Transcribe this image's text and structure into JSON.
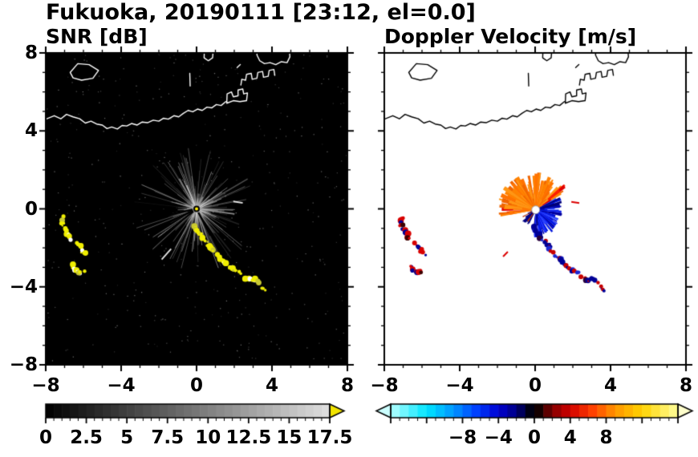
{
  "header": {
    "title": "Fukuoka, 20190111 [23:12, el=0.0]"
  },
  "chart_data": [
    {
      "type": "heatmap",
      "panel": "snr",
      "title": "SNR [dB]",
      "xlabel": "",
      "ylabel": "",
      "xlim": [
        -8,
        8
      ],
      "ylim": [
        -8,
        8
      ],
      "grid": false,
      "xtick_values": [
        -8,
        -4,
        0,
        4,
        8
      ],
      "xtick_labels": [
        "−8",
        "−4",
        "0",
        "4",
        "8"
      ],
      "ytick_values": [
        8,
        4,
        0,
        -4,
        -8
      ],
      "ytick_labels": [
        "8",
        "4",
        "0",
        "−4",
        "−8"
      ],
      "background": "#000000",
      "coast_color": "#ffffff",
      "colorbar": {
        "min": 0,
        "max": 17.5,
        "minor_step": 0.5,
        "major_step": 2.5,
        "tick_values": [
          0,
          2.5,
          5,
          7.5,
          10,
          12.5,
          15,
          17.5
        ],
        "tick_labels": [
          "0",
          "2.5",
          "5",
          "7.5",
          "10",
          "12.5",
          "15",
          "17.5"
        ],
        "scheme": "grayscale",
        "low_color": "#000000",
        "high_color": "#e0e0e0",
        "over_arrow_color": "#f2e400"
      },
      "content": {
        "radar_center": [
          0,
          0
        ],
        "noise_speckle": 430,
        "clutter_fan": {
          "streaks": 320,
          "min_radius": 0.15,
          "max_radius": 3.35
        },
        "dark_spokes": [
          {
            "deg": 192,
            "radius": 2.2
          },
          {
            "deg": 206,
            "radius": 3.4
          },
          {
            "deg": 218,
            "radius": 2.9
          },
          {
            "deg": 297,
            "radius": 1.6
          }
        ],
        "dash_color": "#e8e8e8",
        "bright_dashes": [
          [
            [
              -1.85,
              -2.6
            ],
            [
              -1.35,
              -2.05
            ]
          ],
          [
            [
              1.95,
              0.38
            ],
            [
              2.45,
              0.3
            ]
          ]
        ],
        "echo_groups": [
          {
            "paths_ref": "west_group",
            "palette": [
              {
                "color": "#f0ee00",
                "weight": 0.74
              },
              {
                "color": "#ffffff",
                "weight": 0.13
              },
              {
                "color": "#c8c832",
                "weight": 0.13
              }
            ]
          },
          {
            "paths_ref": "southeast_chain",
            "palette": [
              {
                "color": "#f0ee00",
                "weight": 0.74
              },
              {
                "color": "#ffffff",
                "weight": 0.13
              },
              {
                "color": "#c8c832",
                "weight": 0.13
              }
            ]
          }
        ]
      }
    },
    {
      "type": "heatmap",
      "panel": "velocity",
      "title": "Doppler Velocity [m/s]",
      "xlabel": "",
      "ylabel": "",
      "xlim": [
        -8,
        8
      ],
      "ylim": [
        -8,
        8
      ],
      "grid": false,
      "xtick_values": [
        -8,
        -4,
        0,
        4,
        8
      ],
      "xtick_labels": [
        "−8",
        "−4",
        "0",
        "4",
        "8"
      ],
      "ytick_values": [
        8,
        4,
        0,
        -4,
        -8
      ],
      "ytick_labels": [
        "8",
        "4",
        "0",
        "−4",
        "−8"
      ],
      "background": "#ffffff",
      "coast_color": "#000000",
      "colorbar": {
        "min": -16,
        "max": 16,
        "minor_step": 1,
        "major_step": 4,
        "tick_values": [
          -8,
          -4,
          0,
          4,
          8
        ],
        "tick_labels": [
          "−8",
          "−4",
          "0",
          "4",
          "8"
        ],
        "scheme": "polar-doppler",
        "stops": [
          [
            -16,
            "#b4ffff"
          ],
          [
            -12,
            "#00e6ff"
          ],
          [
            -9,
            "#0096ff"
          ],
          [
            -6.5,
            "#0041ff"
          ],
          [
            -4,
            "#0000d2"
          ],
          [
            -2,
            "#000082"
          ],
          [
            -0.5,
            "#000014"
          ],
          [
            0.5,
            "#140000"
          ],
          [
            2,
            "#820000"
          ],
          [
            4,
            "#d20000"
          ],
          [
            6.5,
            "#ff4100"
          ],
          [
            9,
            "#ff9600"
          ],
          [
            12,
            "#ffd200"
          ],
          [
            16,
            "#ffff9b"
          ]
        ],
        "under_arrow_color": "#ccffff",
        "over_arrow_color": "#ffffcc"
      },
      "content": {
        "radar_center": [
          0.03,
          -0.05
        ],
        "fan_lobes": [
          {
            "name": "away-orange-lobe",
            "a0": 30,
            "a1": 190,
            "rmin": 0.3,
            "rmax": 2.05,
            "n": 190,
            "colors": [
              "#ff8200",
              "#ff9614",
              "#f06400",
              "#ff7300"
            ],
            "fringe": [
              "#ff1e00",
              "#e10000"
            ]
          },
          {
            "name": "toward-blue-lobe",
            "a0": -95,
            "a1": 28,
            "rmin": 0.25,
            "rmax": 1.5,
            "n": 165,
            "colors": [
              "#1e32ff",
              "#0014dc",
              "#0000a0",
              "#2d46ff"
            ],
            "fringe": [
              "#000078"
            ]
          },
          {
            "name": "south-sparse-lobe",
            "a0": 200,
            "a1": 246,
            "rmin": 0.2,
            "rmax": 1.0,
            "n": 34,
            "colors": [
              "#000082",
              "#b43000"
            ]
          }
        ],
        "dash_color": "#dc0000",
        "bright_dashes": [
          [
            [
              1.92,
              0.36
            ],
            [
              2.34,
              0.3
            ]
          ],
          [
            [
              -1.7,
              -2.45
            ],
            [
              -1.45,
              -2.2
            ]
          ]
        ],
        "echo_groups": [
          {
            "paths_ref": "west_group",
            "palette": [
              {
                "color": "#d80000",
                "weight": 0.58
              },
              {
                "color": "#000096",
                "weight": 0.3
              },
              {
                "color": "#3c0000",
                "weight": 0.12
              }
            ]
          },
          {
            "paths_ref": "southeast_chain",
            "palette": [
              {
                "color": "#000096",
                "weight": 0.42
              },
              {
                "color": "#1e28d2",
                "weight": 0.2
              },
              {
                "color": "#c80000",
                "weight": 0.26
              },
              {
                "color": "#28003c",
                "weight": 0.12
              }
            ]
          }
        ]
      }
    }
  ],
  "map_shapes": [
    {
      "name": "island-northwest",
      "closed": true,
      "pts": [
        [
          -6.7,
          7.0
        ],
        [
          -6.3,
          7.45
        ],
        [
          -5.7,
          7.4
        ],
        [
          -5.2,
          7.1
        ],
        [
          -5.5,
          6.7
        ],
        [
          -6.1,
          6.6
        ],
        [
          -6.55,
          6.72
        ]
      ]
    },
    {
      "name": "main-coastline",
      "closed": false,
      "pts": [
        [
          -8,
          4.6
        ],
        [
          -7.55,
          4.78
        ],
        [
          -7.2,
          4.62
        ],
        [
          -6.9,
          4.85
        ],
        [
          -6.55,
          4.72
        ],
        [
          -6.2,
          4.62
        ],
        [
          -5.9,
          4.4
        ],
        [
          -5.6,
          4.5
        ],
        [
          -5.3,
          4.35
        ],
        [
          -5.0,
          4.3
        ],
        [
          -4.75,
          4.12
        ],
        [
          -4.5,
          4.2
        ],
        [
          -4.2,
          4.1
        ],
        [
          -3.95,
          4.28
        ],
        [
          -3.7,
          4.25
        ],
        [
          -3.45,
          4.38
        ],
        [
          -3.15,
          4.3
        ],
        [
          -2.9,
          4.45
        ],
        [
          -2.6,
          4.42
        ],
        [
          -2.3,
          4.55
        ],
        [
          -2.0,
          4.5
        ],
        [
          -1.75,
          4.65
        ],
        [
          -1.5,
          4.6
        ],
        [
          -1.2,
          4.78
        ],
        [
          -0.95,
          4.72
        ],
        [
          -0.7,
          4.9
        ],
        [
          -0.45,
          5.05
        ],
        [
          -0.2,
          4.98
        ],
        [
          0.05,
          5.12
        ],
        [
          0.3,
          5.05
        ],
        [
          0.55,
          5.22
        ],
        [
          0.8,
          5.18
        ],
        [
          1.05,
          5.35
        ],
        [
          1.3,
          5.3
        ],
        [
          1.55,
          5.5
        ]
      ]
    },
    {
      "name": "harbor-pier-a",
      "closed": false,
      "pts": [
        [
          1.6,
          5.42
        ],
        [
          1.62,
          5.9
        ],
        [
          1.85,
          6.0
        ],
        [
          1.95,
          5.75
        ],
        [
          2.2,
          5.8
        ],
        [
          2.2,
          6.1
        ],
        [
          2.45,
          6.15
        ],
        [
          2.5,
          5.9
        ],
        [
          2.7,
          5.95
        ],
        [
          2.65,
          5.55
        ],
        [
          2.3,
          5.5
        ],
        [
          1.95,
          5.55
        ],
        [
          1.6,
          5.42
        ]
      ]
    },
    {
      "name": "harbor-pier-b",
      "closed": false,
      "pts": [
        [
          2.35,
          6.35
        ],
        [
          2.4,
          6.65
        ],
        [
          2.6,
          6.6
        ],
        [
          2.65,
          6.9
        ],
        [
          2.9,
          6.95
        ],
        [
          2.95,
          6.65
        ],
        [
          3.2,
          6.7
        ],
        [
          3.25,
          7.0
        ],
        [
          3.5,
          7.05
        ],
        [
          3.55,
          6.75
        ],
        [
          3.8,
          6.8
        ],
        [
          3.85,
          7.1
        ],
        [
          4.1,
          7.15
        ],
        [
          4.15,
          6.85
        ]
      ]
    },
    {
      "name": "peninsula-northeast",
      "closed": false,
      "pts": [
        [
          3.3,
          8.4
        ],
        [
          3.2,
          7.9
        ],
        [
          3.35,
          7.6
        ],
        [
          3.6,
          7.45
        ],
        [
          3.9,
          7.5
        ],
        [
          4.2,
          7.4
        ],
        [
          4.5,
          7.55
        ],
        [
          4.8,
          7.5
        ],
        [
          4.95,
          7.8
        ],
        [
          4.9,
          8.4
        ]
      ]
    },
    {
      "name": "islet-stub",
      "closed": false,
      "pts": [
        [
          -0.34,
          6.3
        ],
        [
          -0.36,
          6.95
        ]
      ]
    },
    {
      "name": "islet-top",
      "closed": false,
      "pts": [
        [
          0.42,
          8.3
        ],
        [
          0.4,
          7.75
        ],
        [
          0.62,
          7.6
        ],
        [
          0.85,
          7.75
        ],
        [
          0.9,
          8.3
        ]
      ]
    },
    {
      "name": "islet-small",
      "closed": false,
      "pts": [
        [
          2.15,
          7.25
        ],
        [
          2.32,
          7.4
        ]
      ]
    }
  ],
  "echo_paths": {
    "west_group": [
      [
        [
          -7.05,
          -0.45
        ],
        [
          -7.12,
          -0.8
        ],
        [
          -6.95,
          -1.1
        ],
        [
          -6.75,
          -1.3
        ],
        [
          -6.7,
          -1.58
        ]
      ],
      [
        [
          -6.35,
          -1.75
        ],
        [
          -6.15,
          -1.95
        ],
        [
          -6.05,
          -2.2
        ],
        [
          -5.85,
          -2.32
        ]
      ],
      [
        [
          -6.6,
          -2.9
        ],
        [
          -6.45,
          -3.1
        ],
        [
          -6.22,
          -3.26
        ],
        [
          -6.0,
          -3.2
        ]
      ]
    ],
    "southeast_chain": [
      [
        [
          -0.15,
          -0.9
        ],
        [
          0.0,
          -1.1
        ],
        [
          0.2,
          -1.32
        ],
        [
          0.35,
          -1.55
        ]
      ],
      [
        [
          0.5,
          -1.7
        ],
        [
          0.75,
          -1.95
        ],
        [
          0.9,
          -2.2
        ]
      ],
      [
        [
          1.1,
          -2.4
        ],
        [
          1.35,
          -2.6
        ],
        [
          1.5,
          -2.8
        ]
      ],
      [
        [
          1.7,
          -2.95
        ],
        [
          2.0,
          -3.15
        ],
        [
          2.3,
          -3.3
        ]
      ],
      [
        [
          2.5,
          -3.5
        ],
        [
          2.82,
          -3.65
        ],
        [
          3.05,
          -3.58
        ],
        [
          3.3,
          -3.75
        ]
      ],
      [
        [
          3.45,
          -4.0
        ],
        [
          3.62,
          -4.22
        ]
      ]
    ]
  }
}
